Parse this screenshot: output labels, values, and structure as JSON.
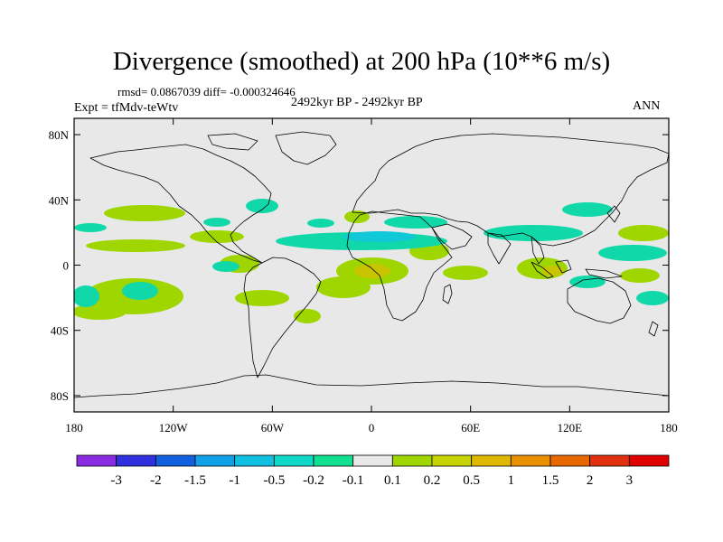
{
  "title": "Divergence (smoothed) at 200 hPa (10**6 m/s)",
  "stats": "rmsd= 0.0867039 diff= -0.000324646",
  "experiment": "Expt = tfMdv-teWtv",
  "period": "2492kyr BP - 2492kyr BP",
  "season": "ANN",
  "colors": {
    "ocean_background": "#e8e8e8",
    "coastline": "#000000",
    "positive_light": "#a0d600",
    "positive_mid": "#c0c800",
    "negative_light": "#10d8a8",
    "negative_mid": "#10c8d8"
  },
  "map": {
    "lon_range": [
      -180,
      180
    ],
    "lat_range": [
      -90,
      90
    ],
    "lat_ticks": [
      {
        "value": 80,
        "label": "80N"
      },
      {
        "value": 40,
        "label": "40N"
      },
      {
        "value": 0,
        "label": "0"
      },
      {
        "value": -40,
        "label": "40S"
      },
      {
        "value": -80,
        "label": "80S"
      }
    ],
    "lon_ticks": [
      {
        "value": -180,
        "label": "180"
      },
      {
        "value": -120,
        "label": "120W"
      },
      {
        "value": -60,
        "label": "60W"
      },
      {
        "value": 0,
        "label": "0"
      },
      {
        "value": 60,
        "label": "60E"
      },
      {
        "value": 120,
        "label": "120E"
      },
      {
        "value": 180,
        "label": "180"
      }
    ]
  },
  "colorbar": {
    "levels": [
      "-3",
      "-2",
      "-1.5",
      "-1",
      "-0.5",
      "-0.2",
      "-0.1",
      "0.1",
      "0.2",
      "0.5",
      "1",
      "1.5",
      "2",
      "3"
    ],
    "colors": [
      "#8a2be2",
      "#3030e0",
      "#1060e0",
      "#10a0e8",
      "#10c0e0",
      "#10d8c8",
      "#10e090",
      "#e8e8e8",
      "#a0d600",
      "#c8d400",
      "#e0b800",
      "#e89000",
      "#e86800",
      "#e03010",
      "#e00000"
    ]
  }
}
